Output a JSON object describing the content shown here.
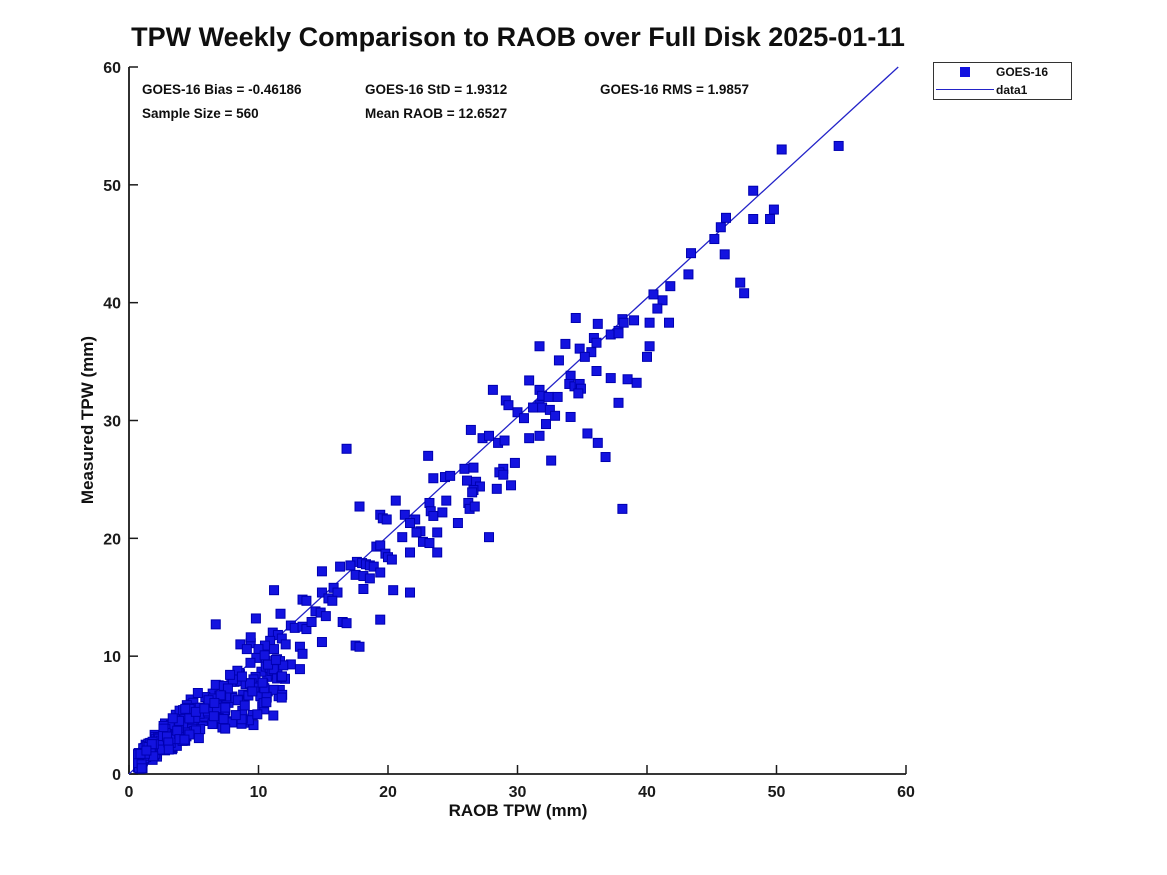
{
  "title": "TPW Weekly Comparison to RAOB over Full Disk 2025-01-11",
  "stats": {
    "bias_label": "GOES-16 Bias = -0.46186",
    "std_label": "GOES-16 StD = 1.9312",
    "rms_label": "GOES-16 RMS = 1.9857",
    "sample_label": "Sample Size = 560",
    "mean_raob_label": "Mean RAOB = 12.6527",
    "bias": -0.46186,
    "std": 1.9312,
    "rms": 1.9857,
    "sample_size": 560,
    "mean_raob": 12.6527
  },
  "legend": {
    "entries": [
      {
        "label": "GOES-16",
        "type": "marker"
      },
      {
        "label": "data1",
        "type": "line"
      }
    ]
  },
  "chart_data": {
    "type": "scatter",
    "title": "TPW Weekly Comparison to RAOB over Full Disk 2025-01-11",
    "xlabel": "RAOB TPW (mm)",
    "ylabel": "Measured TPW (mm)",
    "xlim": [
      0,
      60
    ],
    "ylim": [
      0,
      60
    ],
    "xticks": [
      0,
      10,
      20,
      30,
      40,
      50,
      60
    ],
    "yticks": [
      0,
      10,
      20,
      30,
      40,
      50,
      60
    ],
    "grid": false,
    "legend_position": "outside-top-right",
    "axis_color": "#1a1a1a",
    "marker_color": "#1313e0",
    "marker_edge_color": "#0000b0",
    "line_color": "#2323c8",
    "fit_line": {
      "name": "data1",
      "x": [
        0,
        59.4
      ],
      "y": [
        0,
        60
      ]
    },
    "series": [
      {
        "name": "GOES-16",
        "marker": "square",
        "points": [
          [
            50.4,
            53
          ],
          [
            54.8,
            53.3
          ],
          [
            48.2,
            49.5
          ],
          [
            49.8,
            47.9
          ],
          [
            49.5,
            47.1
          ],
          [
            48.2,
            47.1
          ],
          [
            46.1,
            47.2
          ],
          [
            45.7,
            46.4
          ],
          [
            45.2,
            45.4
          ],
          [
            43.4,
            44.2
          ],
          [
            46,
            44.1
          ],
          [
            43.2,
            42.4
          ],
          [
            41.8,
            41.4
          ],
          [
            40.5,
            40.7
          ],
          [
            41.2,
            40.2
          ],
          [
            40.8,
            39.5
          ],
          [
            38.1,
            38.6
          ],
          [
            39,
            38.5
          ],
          [
            40.2,
            38.3
          ],
          [
            41.7,
            38.3
          ],
          [
            47.2,
            41.7
          ],
          [
            47.5,
            40.8
          ],
          [
            37.8,
            37.6
          ],
          [
            34.5,
            38.7
          ],
          [
            36.2,
            38.2
          ],
          [
            38.2,
            38.3
          ],
          [
            37.2,
            37.3
          ],
          [
            37.8,
            37.4
          ],
          [
            31.7,
            36.3
          ],
          [
            33.7,
            36.5
          ],
          [
            34.8,
            36.1
          ],
          [
            35.9,
            37
          ],
          [
            36.1,
            36.6
          ],
          [
            35.7,
            35.8
          ],
          [
            35.2,
            35.4
          ],
          [
            33.2,
            35.1
          ],
          [
            40.2,
            36.3
          ],
          [
            40,
            35.4
          ],
          [
            34.1,
            33.8
          ],
          [
            36.1,
            34.2
          ],
          [
            37.2,
            33.6
          ],
          [
            38.5,
            33.5
          ],
          [
            39.2,
            33.2
          ],
          [
            34,
            33.1
          ],
          [
            34.4,
            32.9
          ],
          [
            34.8,
            33.1
          ],
          [
            34.9,
            32.7
          ],
          [
            34.7,
            32.3
          ],
          [
            31.7,
            32.6
          ],
          [
            31.9,
            32.1
          ],
          [
            32.4,
            32
          ],
          [
            33.1,
            32
          ],
          [
            31.7,
            31.3
          ],
          [
            31.9,
            31.1
          ],
          [
            32.5,
            30.9
          ],
          [
            32.9,
            30.4
          ],
          [
            34.1,
            30.3
          ],
          [
            37.8,
            31.5
          ],
          [
            35.4,
            28.9
          ],
          [
            36.2,
            28.1
          ],
          [
            36.8,
            26.9
          ],
          [
            32.6,
            26.6
          ],
          [
            30.9,
            33.4
          ],
          [
            28.1,
            32.6
          ],
          [
            29.1,
            31.7
          ],
          [
            29.3,
            31.3
          ],
          [
            30,
            30.7
          ],
          [
            31.2,
            31.1
          ],
          [
            30.5,
            30.2
          ],
          [
            26.4,
            29.2
          ],
          [
            27.3,
            28.5
          ],
          [
            27.8,
            28.7
          ],
          [
            28.5,
            28.1
          ],
          [
            29,
            28.3
          ],
          [
            30.9,
            28.5
          ],
          [
            31.7,
            28.7
          ],
          [
            23.1,
            27
          ],
          [
            28.9,
            25.9
          ],
          [
            29.8,
            26.4
          ],
          [
            23.5,
            25.1
          ],
          [
            24.4,
            25.2
          ],
          [
            24.8,
            25.3
          ],
          [
            25.9,
            25.9
          ],
          [
            26.6,
            26
          ],
          [
            26.1,
            24.9
          ],
          [
            26.8,
            24.8
          ],
          [
            27.1,
            24.4
          ],
          [
            28.6,
            25.6
          ],
          [
            28.9,
            25.4
          ],
          [
            29.5,
            24.5
          ],
          [
            28.4,
            24.2
          ],
          [
            26.6,
            24.1
          ],
          [
            20.6,
            23.2
          ],
          [
            24.5,
            23.2
          ],
          [
            23.2,
            23
          ],
          [
            23.3,
            22.3
          ],
          [
            23.5,
            21.9
          ],
          [
            26.2,
            23
          ],
          [
            26.3,
            22.5
          ],
          [
            19.4,
            22
          ],
          [
            21.3,
            22
          ],
          [
            22.1,
            21.6
          ],
          [
            21.7,
            21.3
          ],
          [
            25.4,
            21.3
          ],
          [
            22.5,
            20.6
          ],
          [
            23.8,
            20.5
          ],
          [
            21.1,
            20.1
          ],
          [
            22.7,
            19.7
          ],
          [
            23.2,
            19.6
          ],
          [
            27.8,
            20.1
          ],
          [
            16.8,
            27.6
          ],
          [
            17.8,
            22.7
          ],
          [
            19.6,
            21.7
          ],
          [
            19.9,
            21.6
          ],
          [
            19.1,
            19.3
          ],
          [
            19.4,
            19.4
          ],
          [
            19.8,
            18.7
          ],
          [
            20,
            18.4
          ],
          [
            20.3,
            18.2
          ],
          [
            17.6,
            18
          ],
          [
            18,
            17.9
          ],
          [
            18.3,
            17.8
          ],
          [
            18.6,
            17.7
          ],
          [
            18.9,
            17.6
          ],
          [
            17.1,
            17.7
          ],
          [
            17.5,
            16.9
          ],
          [
            18.1,
            16.8
          ],
          [
            18.6,
            16.6
          ],
          [
            19.4,
            17.1
          ],
          [
            14.9,
            17.2
          ],
          [
            16.3,
            17.6
          ],
          [
            14.9,
            15.4
          ],
          [
            15.8,
            15.8
          ],
          [
            16.1,
            15.4
          ],
          [
            15.4,
            14.9
          ],
          [
            15.7,
            14.7
          ],
          [
            18.1,
            15.7
          ],
          [
            20.4,
            15.6
          ],
          [
            11.2,
            15.6
          ],
          [
            13.4,
            14.8
          ],
          [
            13.7,
            14.7
          ],
          [
            14.4,
            13.8
          ],
          [
            14.8,
            13.7
          ],
          [
            15.2,
            13.4
          ],
          [
            11.7,
            13.6
          ],
          [
            9.8,
            13.2
          ],
          [
            12.5,
            12.6
          ],
          [
            12.8,
            12.4
          ],
          [
            13.4,
            12.5
          ],
          [
            13.7,
            12.3
          ],
          [
            14.1,
            12.9
          ],
          [
            16.5,
            12.9
          ],
          [
            16.8,
            12.8
          ],
          [
            11.1,
            12
          ],
          [
            11.5,
            11.8
          ],
          [
            11.8,
            11.5
          ],
          [
            10.9,
            11.3
          ],
          [
            12.1,
            11
          ],
          [
            13.2,
            10.8
          ],
          [
            10.5,
            10.9
          ],
          [
            9.4,
            11.1
          ],
          [
            8.6,
            11
          ],
          [
            9.1,
            10.6
          ],
          [
            10,
            10.6
          ],
          [
            11.2,
            10.6
          ],
          [
            17.5,
            10.9
          ],
          [
            17.8,
            10.8
          ],
          [
            19.4,
            13.1
          ],
          [
            6.7,
            12.7
          ],
          [
            9.4,
            11.6
          ],
          [
            14.9,
            11.2
          ],
          [
            13.4,
            10.2
          ],
          [
            12.5,
            9.3
          ],
          [
            13.2,
            8.9
          ],
          [
            38.1,
            22.5
          ],
          [
            21.7,
            15.4
          ],
          [
            26.5,
            23.9
          ],
          [
            24.2,
            22.2
          ],
          [
            26.7,
            22.7
          ],
          [
            22.2,
            20.5
          ],
          [
            23.8,
            18.8
          ],
          [
            21.7,
            18.8
          ],
          [
            32.2,
            29.7
          ]
        ],
        "dense_cluster": {
          "note": "solid overlapping blob of points along the 1:1 line near the origin; reconstructed statistically to reach the shown Sample Size",
          "count": 377,
          "seed": 7,
          "x_min": 0.7,
          "x_span": 11.5,
          "x_power": 2.0,
          "curve": [
            1.05,
            0.3,
            -0.035
          ],
          "width_base": 0.55,
          "width_slope": 0.2,
          "width_mult": 1.3,
          "y_min": 0.4
        }
      }
    ]
  }
}
